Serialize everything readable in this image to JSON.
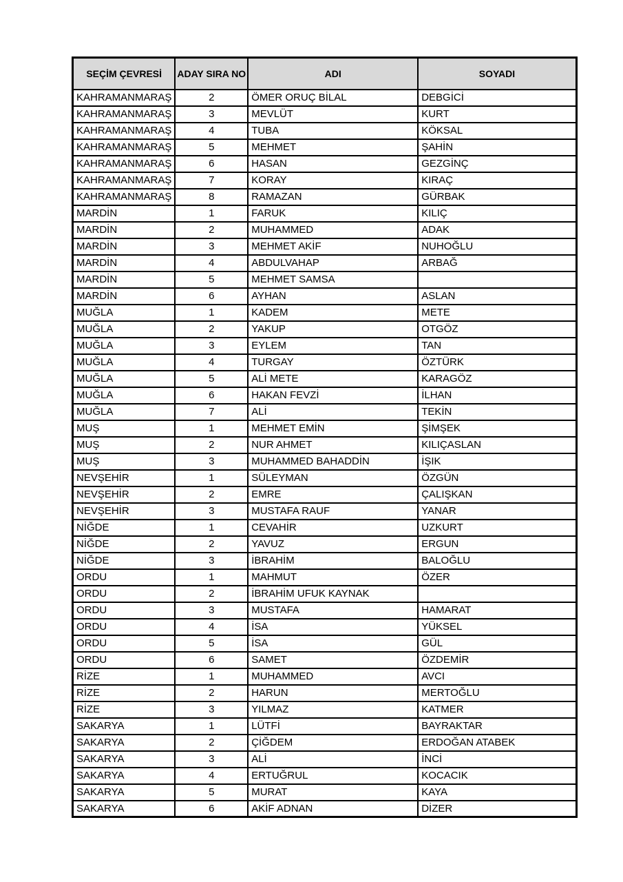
{
  "colors": {
    "page_bg": "#ffffff",
    "header_bg": "#d9d9d9",
    "border": "#000000",
    "text": "#000000"
  },
  "table": {
    "headers": [
      "SEÇİM ÇEVRESİ",
      "ADAY SIRA NO",
      "ADI",
      "SOYADI"
    ],
    "rows": [
      [
        "KAHRAMANMARAŞ",
        "2",
        "ÖMER ORUÇ BİLAL",
        "DEBGİCİ"
      ],
      [
        "KAHRAMANMARAŞ",
        "3",
        "MEVLÜT",
        "KURT"
      ],
      [
        "KAHRAMANMARAŞ",
        "4",
        "TUBA",
        "KÖKSAL"
      ],
      [
        "KAHRAMANMARAŞ",
        "5",
        "MEHMET",
        "ŞAHİN"
      ],
      [
        "KAHRAMANMARAŞ",
        "6",
        "HASAN",
        "GEZGİNÇ"
      ],
      [
        "KAHRAMANMARAŞ",
        "7",
        "KORAY",
        "KIRAÇ"
      ],
      [
        "KAHRAMANMARAŞ",
        "8",
        "RAMAZAN",
        "GÜRBAK"
      ],
      [
        "MARDİN",
        "1",
        "FARUK",
        "KILIÇ"
      ],
      [
        "MARDİN",
        "2",
        "MUHAMMED",
        "ADAK"
      ],
      [
        "MARDİN",
        "3",
        "MEHMET AKİF",
        "NUHOĞLU"
      ],
      [
        "MARDİN",
        "4",
        "ABDULVAHAP",
        "ARBAĞ"
      ],
      [
        "MARDİN",
        "5",
        "MEHMET SAMSA",
        ""
      ],
      [
        "MARDİN",
        "6",
        "AYHAN",
        "ASLAN"
      ],
      [
        "MUĞLA",
        "1",
        "KADEM",
        "METE"
      ],
      [
        "MUĞLA",
        "2",
        "YAKUP",
        "OTGÖZ"
      ],
      [
        "MUĞLA",
        "3",
        "EYLEM",
        "TAN"
      ],
      [
        "MUĞLA",
        "4",
        "TURGAY",
        "ÖZTÜRK"
      ],
      [
        "MUĞLA",
        "5",
        "ALİ METE",
        "KARAGÖZ"
      ],
      [
        "MUĞLA",
        "6",
        "HAKAN FEVZİ",
        "İLHAN"
      ],
      [
        "MUĞLA",
        "7",
        "ALİ",
        "TEKİN"
      ],
      [
        "MUŞ",
        "1",
        "MEHMET EMİN",
        "ŞİMŞEK"
      ],
      [
        "MUŞ",
        "2",
        "NUR AHMET",
        "KILIÇASLAN"
      ],
      [
        "MUŞ",
        "3",
        "MUHAMMED BAHADDİN",
        "İŞIK"
      ],
      [
        "NEVŞEHİR",
        "1",
        "SÜLEYMAN",
        "ÖZGÜN"
      ],
      [
        "NEVŞEHİR",
        "2",
        "EMRE",
        "ÇALIŞKAN"
      ],
      [
        "NEVŞEHİR",
        "3",
        "MUSTAFA RAUF",
        "YANAR"
      ],
      [
        "NİĞDE",
        "1",
        "CEVAHİR",
        "UZKURT"
      ],
      [
        "NİĞDE",
        "2",
        "YAVUZ",
        "ERGUN"
      ],
      [
        "NİĞDE",
        "3",
        "İBRAHİM",
        "BALOĞLU"
      ],
      [
        "ORDU",
        "1",
        "MAHMUT",
        "ÖZER"
      ],
      [
        "ORDU",
        "2",
        "İBRAHİM UFUK KAYNAK",
        ""
      ],
      [
        "ORDU",
        "3",
        "MUSTAFA",
        "HAMARAT"
      ],
      [
        "ORDU",
        "4",
        "İSA",
        "YÜKSEL"
      ],
      [
        "ORDU",
        "5",
        "İSA",
        "GÜL"
      ],
      [
        "ORDU",
        "6",
        "SAMET",
        "ÖZDEMİR"
      ],
      [
        "RİZE",
        "1",
        "MUHAMMED",
        "AVCI"
      ],
      [
        "RİZE",
        "2",
        "HARUN",
        "MERTOĞLU"
      ],
      [
        "RİZE",
        "3",
        "YILMAZ",
        "KATMER"
      ],
      [
        "SAKARYA",
        "1",
        "LÜTFİ",
        "BAYRAKTAR"
      ],
      [
        "SAKARYA",
        "2",
        "ÇİĞDEM",
        "ERDOĞAN ATABEK"
      ],
      [
        "SAKARYA",
        "3",
        "ALİ",
        "İNCİ"
      ],
      [
        "SAKARYA",
        "4",
        "ERTUĞRUL",
        "KOCACIK"
      ],
      [
        "SAKARYA",
        "5",
        "MURAT",
        "KAYA"
      ],
      [
        "SAKARYA",
        "6",
        "AKİF ADNAN",
        "DİZER"
      ]
    ]
  }
}
